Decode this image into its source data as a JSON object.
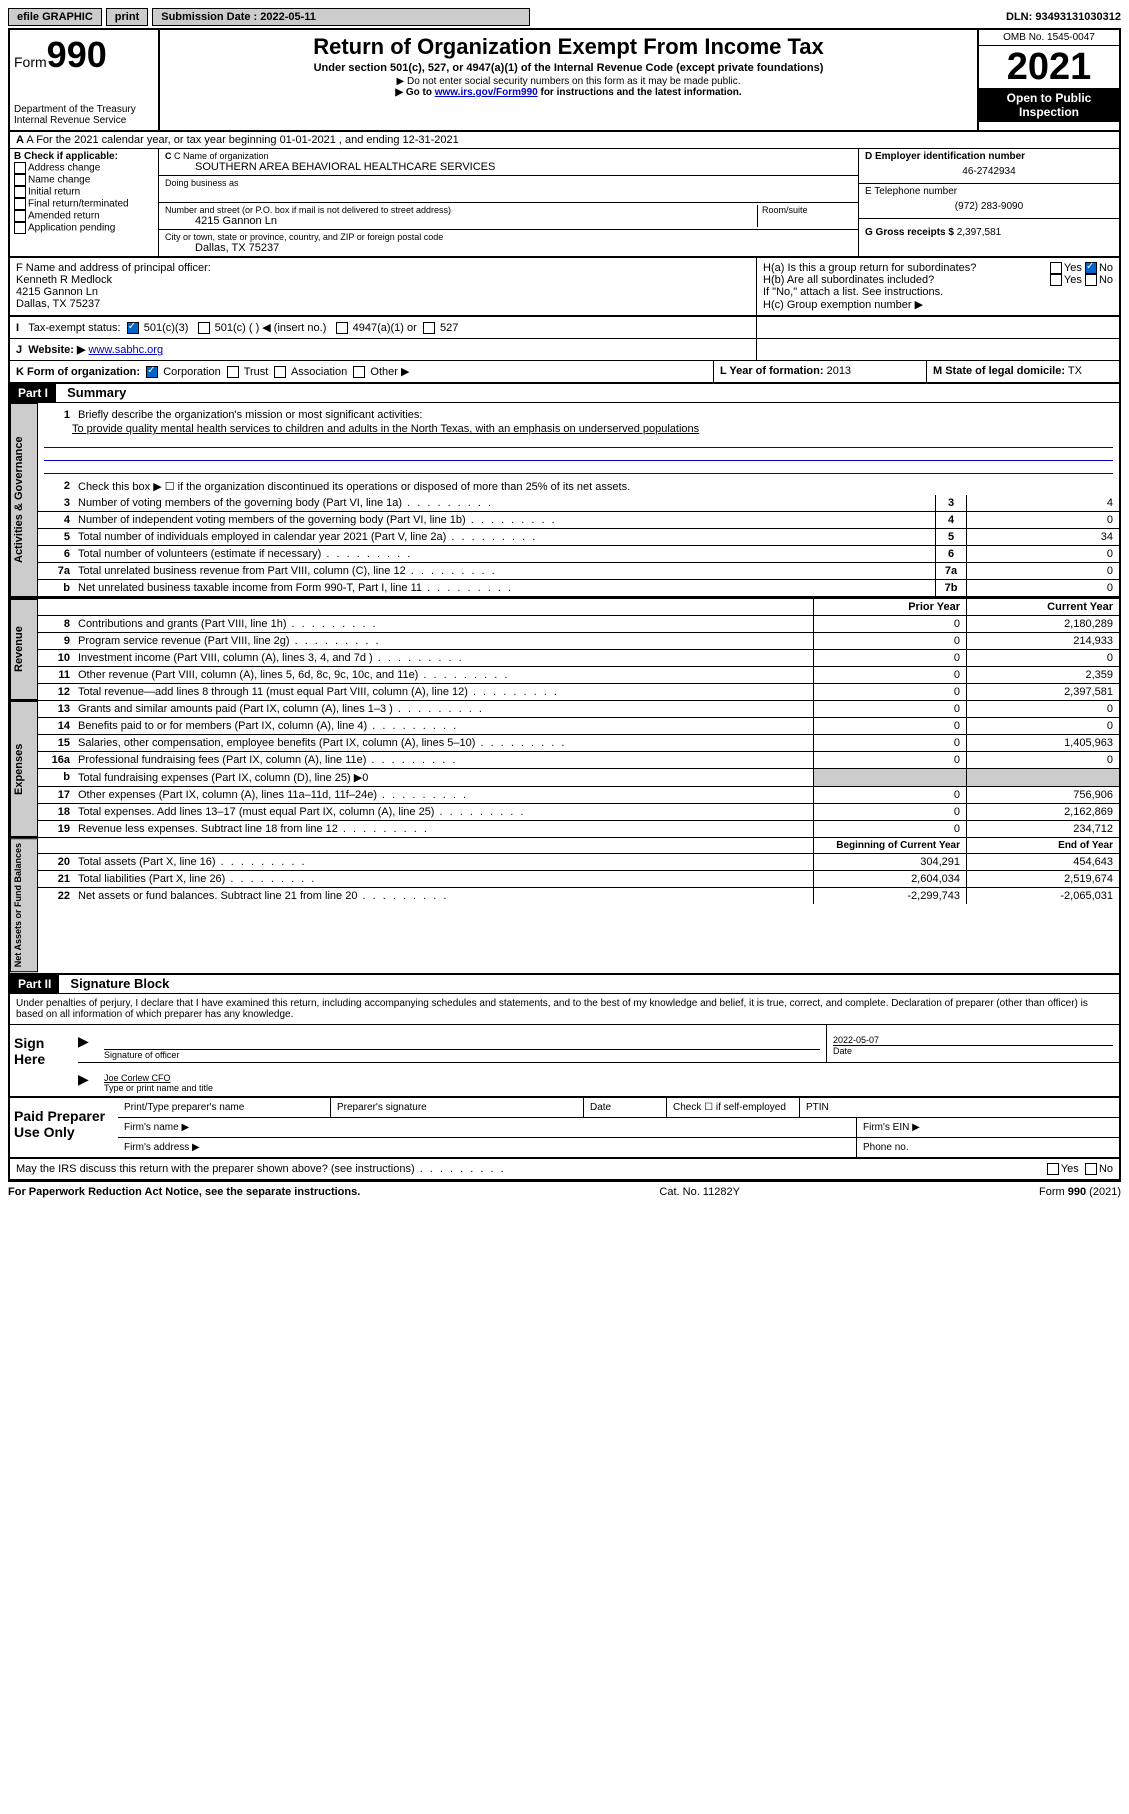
{
  "topbar": {
    "efile": "efile GRAPHIC",
    "print": "print",
    "sub_label": "Submission Date : 2022-05-11",
    "dln": "DLN: 93493131030312"
  },
  "header": {
    "form_word": "Form",
    "form_num": "990",
    "dept": "Department of the Treasury",
    "irs": "Internal Revenue Service",
    "title": "Return of Organization Exempt From Income Tax",
    "sub1": "Under section 501(c), 527, or 4947(a)(1) of the Internal Revenue Code (except private foundations)",
    "sub2": "▶ Do not enter social security numbers on this form as it may be made public.",
    "sub3a": "▶ Go to ",
    "sub3_link": "www.irs.gov/Form990",
    "sub3b": " for instructions and the latest information.",
    "omb": "OMB No. 1545-0047",
    "year": "2021",
    "open": "Open to Public Inspection"
  },
  "rowA": "A For the 2021 calendar year, or tax year beginning 01-01-2021   , and ending 12-31-2021",
  "boxB": {
    "title": "B Check if applicable:",
    "items": [
      "Address change",
      "Name change",
      "Initial return",
      "Final return/terminated",
      "Amended return",
      "Application pending"
    ]
  },
  "boxC": {
    "label_name": "C Name of organization",
    "org_name": "SOUTHERN AREA BEHAVIORAL HEALTHCARE SERVICES",
    "dba_label": "Doing business as",
    "addr_label": "Number and street (or P.O. box if mail is not delivered to street address)",
    "room_label": "Room/suite",
    "addr": "4215 Gannon Ln",
    "city_label": "City or town, state or province, country, and ZIP or foreign postal code",
    "city": "Dallas, TX  75237"
  },
  "boxD": {
    "label": "D Employer identification number",
    "value": "46-2742934"
  },
  "boxE": {
    "label": "E Telephone number",
    "value": "(972) 283-9090"
  },
  "boxG": {
    "label": "G Gross receipts $",
    "value": "2,397,581"
  },
  "boxF": {
    "label": "F Name and address of principal officer:",
    "name": "Kenneth R Medlock",
    "addr1": "4215 Gannon Ln",
    "addr2": "Dallas, TX  75237"
  },
  "boxH": {
    "ha": "H(a)  Is this a group return for subordinates?",
    "hb": "H(b)  Are all subordinates included?",
    "hb_note": "If \"No,\" attach a list. See instructions.",
    "hc": "H(c)  Group exemption number ▶",
    "yes": "Yes",
    "no": "No"
  },
  "rowI": {
    "label": "Tax-exempt status:",
    "opt1": "501(c)(3)",
    "opt2": "501(c) (  ) ◀ (insert no.)",
    "opt3": "4947(a)(1) or",
    "opt4": "527"
  },
  "rowJ": {
    "label": "Website: ▶",
    "value": "www.sabhc.org"
  },
  "rowK": {
    "label": "K Form of organization:",
    "opts": [
      "Corporation",
      "Trust",
      "Association",
      "Other ▶"
    ]
  },
  "rowL": {
    "label": "L Year of formation:",
    "value": "2013"
  },
  "rowM": {
    "label": "M State of legal domicile:",
    "value": "TX"
  },
  "part1": {
    "header": "Part I",
    "title": "Summary",
    "l1_label": "Briefly describe the organization's mission or most significant activities:",
    "l1_text": "To provide quality mental health services to children and adults in the North Texas, with an emphasis on underserved populations",
    "l2": "Check this box ▶ ☐  if the organization discontinued its operations or disposed of more than 25% of its net assets.",
    "lines_gov": [
      {
        "n": "3",
        "d": "Number of voting members of the governing body (Part VI, line 1a)",
        "box": "3",
        "v": "4"
      },
      {
        "n": "4",
        "d": "Number of independent voting members of the governing body (Part VI, line 1b)",
        "box": "4",
        "v": "0"
      },
      {
        "n": "5",
        "d": "Total number of individuals employed in calendar year 2021 (Part V, line 2a)",
        "box": "5",
        "v": "34"
      },
      {
        "n": "6",
        "d": "Total number of volunteers (estimate if necessary)",
        "box": "6",
        "v": "0"
      },
      {
        "n": "7a",
        "d": "Total unrelated business revenue from Part VIII, column (C), line 12",
        "box": "7a",
        "v": "0"
      },
      {
        "n": "b",
        "d": "Net unrelated business taxable income from Form 990-T, Part I, line 11",
        "box": "7b",
        "v": "0"
      }
    ],
    "col_prior": "Prior Year",
    "col_current": "Current Year",
    "lines_rev": [
      {
        "n": "8",
        "d": "Contributions and grants (Part VIII, line 1h)",
        "p": "0",
        "c": "2,180,289"
      },
      {
        "n": "9",
        "d": "Program service revenue (Part VIII, line 2g)",
        "p": "0",
        "c": "214,933"
      },
      {
        "n": "10",
        "d": "Investment income (Part VIII, column (A), lines 3, 4, and 7d )",
        "p": "0",
        "c": "0"
      },
      {
        "n": "11",
        "d": "Other revenue (Part VIII, column (A), lines 5, 6d, 8c, 9c, 10c, and 11e)",
        "p": "0",
        "c": "2,359"
      },
      {
        "n": "12",
        "d": "Total revenue—add lines 8 through 11 (must equal Part VIII, column (A), line 12)",
        "p": "0",
        "c": "2,397,581"
      }
    ],
    "lines_exp": [
      {
        "n": "13",
        "d": "Grants and similar amounts paid (Part IX, column (A), lines 1–3 )",
        "p": "0",
        "c": "0"
      },
      {
        "n": "14",
        "d": "Benefits paid to or for members (Part IX, column (A), line 4)",
        "p": "0",
        "c": "0"
      },
      {
        "n": "15",
        "d": "Salaries, other compensation, employee benefits (Part IX, column (A), lines 5–10)",
        "p": "0",
        "c": "1,405,963"
      },
      {
        "n": "16a",
        "d": "Professional fundraising fees (Part IX, column (A), line 11e)",
        "p": "0",
        "c": "0"
      },
      {
        "n": "b",
        "d": "Total fundraising expenses (Part IX, column (D), line 25) ▶0",
        "p": "",
        "c": "",
        "shaded": true
      },
      {
        "n": "17",
        "d": "Other expenses (Part IX, column (A), lines 11a–11d, 11f–24e)",
        "p": "0",
        "c": "756,906"
      },
      {
        "n": "18",
        "d": "Total expenses. Add lines 13–17 (must equal Part IX, column (A), line 25)",
        "p": "0",
        "c": "2,162,869"
      },
      {
        "n": "19",
        "d": "Revenue less expenses. Subtract line 18 from line 12",
        "p": "0",
        "c": "234,712"
      }
    ],
    "col_begin": "Beginning of Current Year",
    "col_end": "End of Year",
    "lines_net": [
      {
        "n": "20",
        "d": "Total assets (Part X, line 16)",
        "p": "304,291",
        "c": "454,643"
      },
      {
        "n": "21",
        "d": "Total liabilities (Part X, line 26)",
        "p": "2,604,034",
        "c": "2,519,674"
      },
      {
        "n": "22",
        "d": "Net assets or fund balances. Subtract line 21 from line 20",
        "p": "-2,299,743",
        "c": "-2,065,031"
      }
    ]
  },
  "part2": {
    "header": "Part II",
    "title": "Signature Block",
    "decl": "Under penalties of perjury, I declare that I have examined this return, including accompanying schedules and statements, and to the best of my knowledge and belief, it is true, correct, and complete. Declaration of preparer (other than officer) is based on all information of which preparer has any knowledge.",
    "sign_here": "Sign Here",
    "sig_officer": "Signature of officer",
    "date_label": "Date",
    "date_val": "2022-05-07",
    "name_title": "Joe Corlew CFO",
    "type_name": "Type or print name and title",
    "paid": "Paid Preparer Use Only",
    "pt_name": "Print/Type preparer's name",
    "pt_sig": "Preparer's signature",
    "pt_date": "Date",
    "pt_check": "Check ☐ if self-employed",
    "pt_ptin": "PTIN",
    "firm_name": "Firm's name  ▶",
    "firm_ein": "Firm's EIN ▶",
    "firm_addr": "Firm's address ▶",
    "phone": "Phone no."
  },
  "footer": {
    "may": "May the IRS discuss this return with the preparer shown above? (see instructions)",
    "yes": "Yes",
    "no": "No",
    "pra": "For Paperwork Reduction Act Notice, see the separate instructions.",
    "cat": "Cat. No. 11282Y",
    "form": "Form 990 (2021)"
  },
  "tabs": {
    "gov": "Activities & Governance",
    "rev": "Revenue",
    "exp": "Expenses",
    "net": "Net Assets or Fund Balances"
  }
}
